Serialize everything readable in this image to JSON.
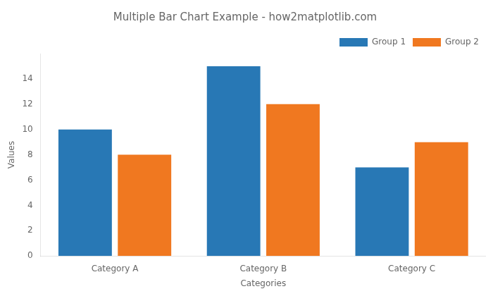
{
  "chart_data": {
    "type": "bar",
    "title": "Multiple Bar Chart Example - how2matplotlib.com",
    "xlabel": "Categories",
    "ylabel": "Values",
    "categories": [
      "Category A",
      "Category B",
      "Category C"
    ],
    "series": [
      {
        "name": "Group 1",
        "color": "#2878b5",
        "values": [
          10,
          15,
          7
        ]
      },
      {
        "name": "Group 2",
        "color": "#f07820",
        "values": [
          8,
          12,
          9
        ]
      }
    ],
    "ylim": [
      0,
      16
    ],
    "yticks": [
      0,
      2,
      4,
      6,
      8,
      10,
      12,
      14
    ],
    "grid": false,
    "legend": "upper right"
  }
}
